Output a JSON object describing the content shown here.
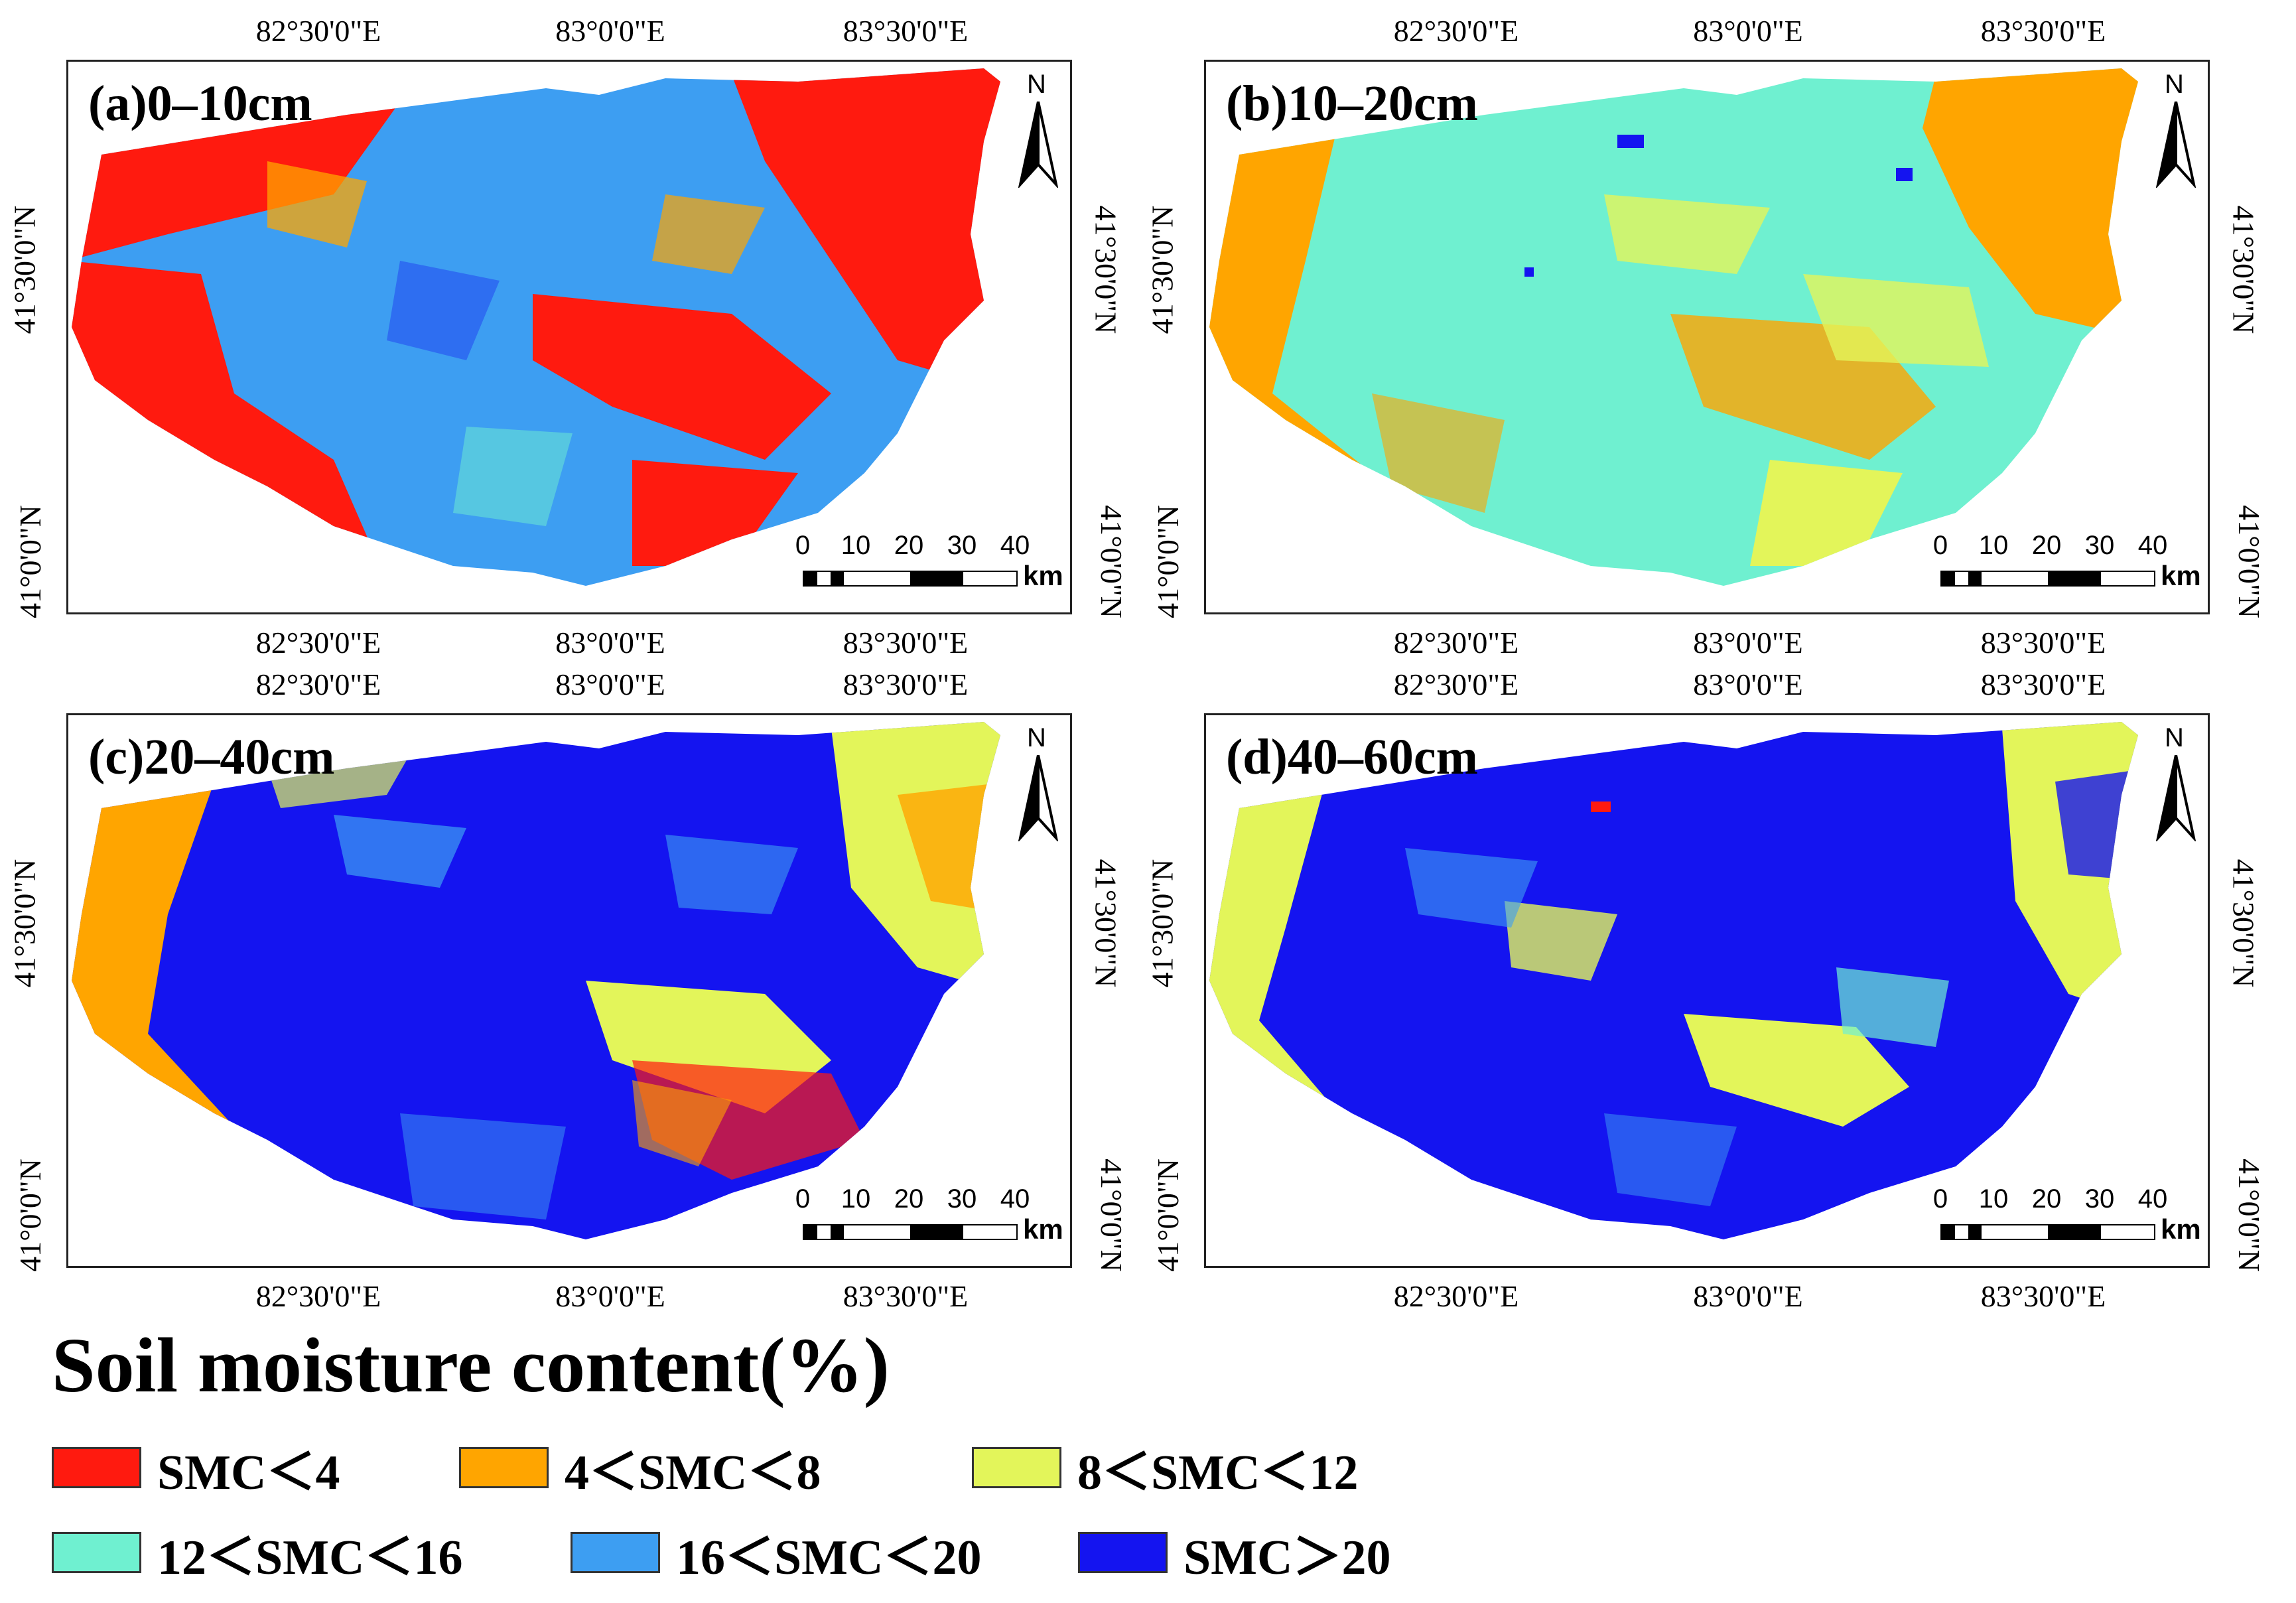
{
  "figure": {
    "legend_title": "Soil moisture content(%)",
    "axis_labels": {
      "lon": [
        "82°30'0\"E",
        "83°0'0\"E",
        "83°30'0\"E"
      ],
      "lat": [
        "41°30'0\"N",
        "41°0'0\"N"
      ]
    },
    "north_label": "N",
    "scale_bar": {
      "ticks": [
        "0",
        "10",
        "20",
        "30",
        "40"
      ],
      "unit": "km"
    },
    "panels": [
      {
        "label": "(a)0–10cm",
        "dominant_classes": [
          "SMC<4",
          "16<SMC<20"
        ]
      },
      {
        "label": "(b)10–20cm",
        "dominant_classes": [
          "12<SMC<16",
          "4<SMC<8",
          "8<SMC<12"
        ]
      },
      {
        "label": "(c)20–40cm",
        "dominant_classes": [
          "SMC>20",
          "8<SMC<12",
          "4<SMC<8"
        ]
      },
      {
        "label": "(d)40–60cm",
        "dominant_classes": [
          "SMC>20",
          "8<SMC<12"
        ]
      }
    ],
    "legend": [
      {
        "label": "SMC＜4",
        "color": "#ff1a0f"
      },
      {
        "label": "4＜SMC＜8",
        "color": "#ffa500"
      },
      {
        "label": "8＜SMC＜12",
        "color": "#e3f55a"
      },
      {
        "label": "12＜SMC＜16",
        "color": "#6ff0d0"
      },
      {
        "label": "16＜SMC＜20",
        "color": "#3d9ef2"
      },
      {
        "label": "SMC＞20",
        "color": "#1414f0"
      }
    ]
  }
}
